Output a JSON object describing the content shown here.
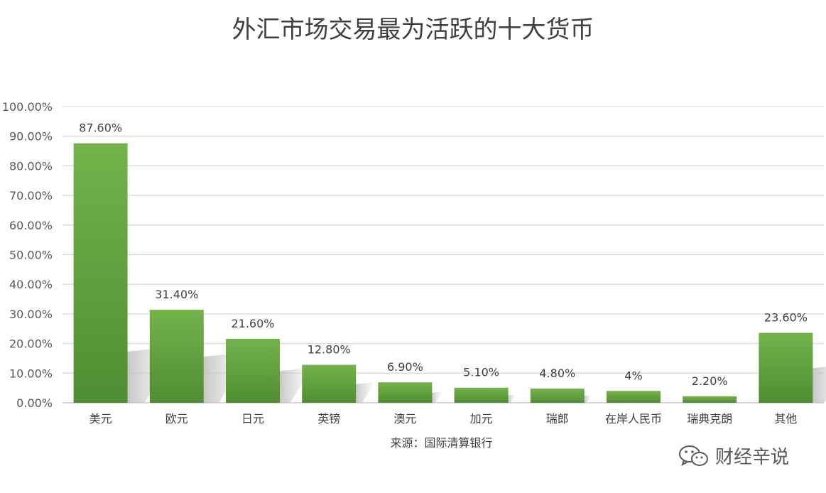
{
  "chart_data": {
    "type": "bar",
    "title": "外汇市场交易最为活跃的十大货币",
    "categories": [
      "美元",
      "欧元",
      "日元",
      "英镑",
      "澳元",
      "加元",
      "瑞郎",
      "在岸人民币",
      "瑞典克朗",
      "其他"
    ],
    "values": [
      87.6,
      31.4,
      21.6,
      12.8,
      6.9,
      5.1,
      4.8,
      4,
      2.2,
      23.6
    ],
    "data_labels": [
      "87.60%",
      "31.40%",
      "21.60%",
      "12.80%",
      "6.90%",
      "5.10%",
      "4.80%",
      "4%",
      "2.20%",
      "23.60%"
    ],
    "y_ticks": [
      0,
      10,
      20,
      30,
      40,
      50,
      60,
      70,
      80,
      90,
      100
    ],
    "y_tick_labels": [
      "0.00%",
      "10.00%",
      "20.00%",
      "30.00%",
      "40.00%",
      "50.00%",
      "60.00%",
      "70.00%",
      "80.00%",
      "90.00%",
      "100.00%"
    ],
    "ylim": [
      0,
      100
    ],
    "grid": true,
    "bar_color": "#6aaa44",
    "bar_color_dark": "#4f8a30"
  },
  "source": "来源：国际清算银行",
  "watermark": "财经辛说",
  "watermark_icon": "wechat-icon"
}
